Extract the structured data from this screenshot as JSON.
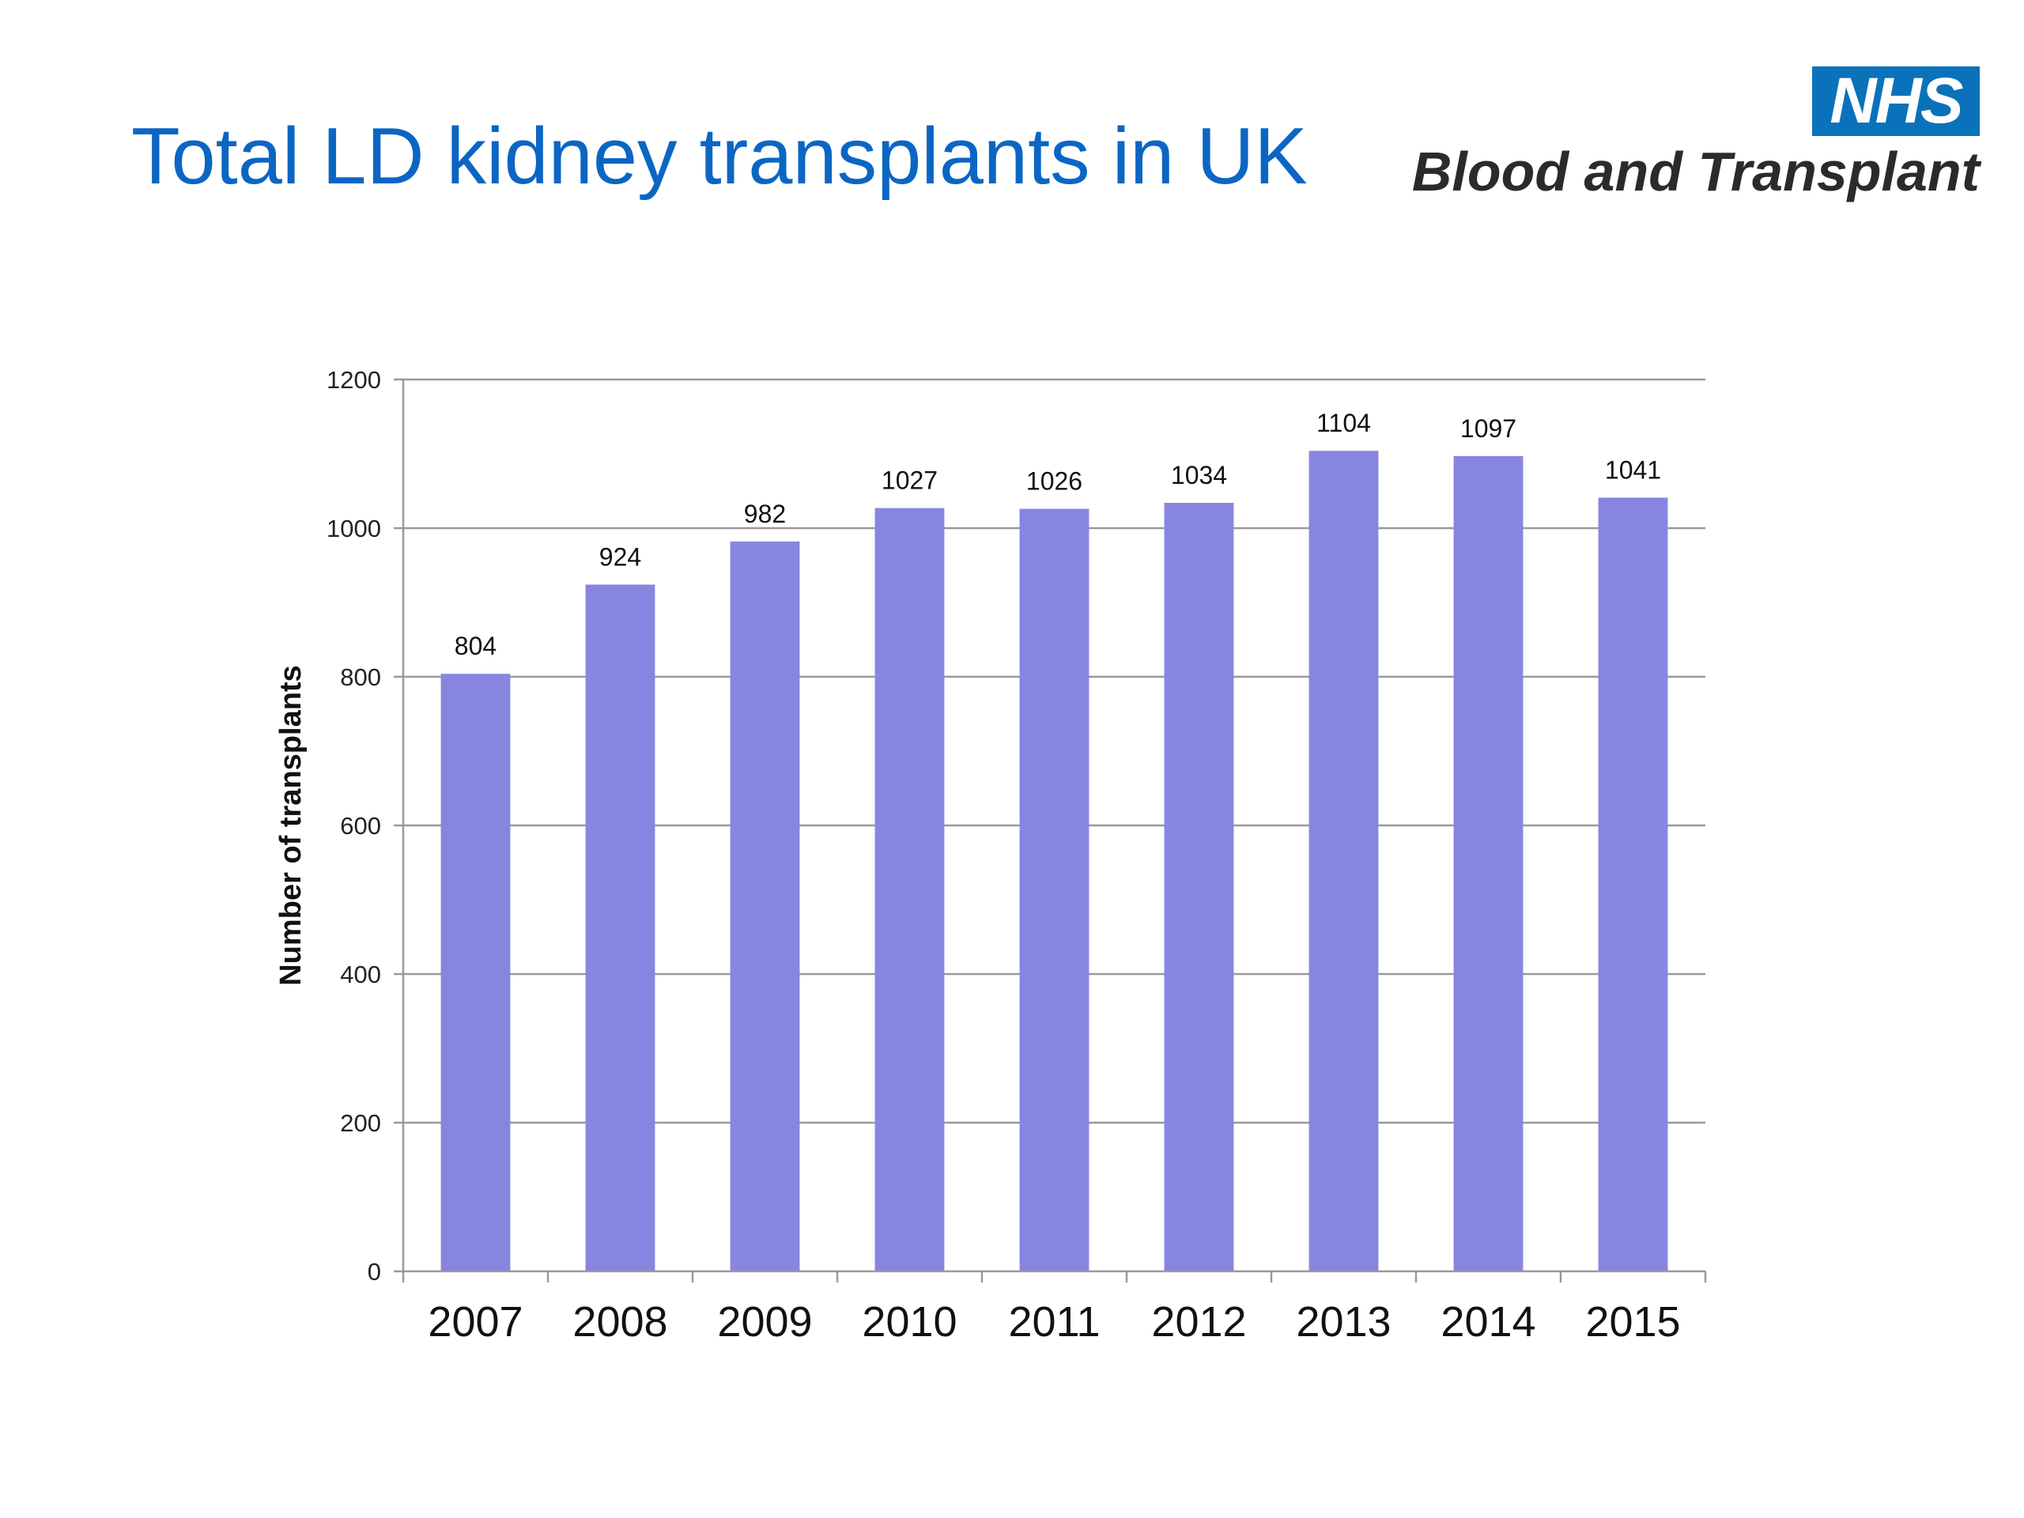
{
  "header": {
    "title": "Total LD kidney transplants in UK",
    "logo_badge": "NHS",
    "logo_text": "Blood and Transplant"
  },
  "colors": {
    "title": "#0b66c3",
    "bar": "#8686e0",
    "logo_badge": "#0a72ba",
    "grid": "#999999"
  },
  "chart_data": {
    "type": "bar",
    "title": "",
    "xlabel": "",
    "ylabel": "Number of transplants",
    "ylim": [
      0,
      1200
    ],
    "yticks": [
      0,
      200,
      400,
      600,
      800,
      1000,
      1200
    ],
    "grid": true,
    "categories": [
      "2007",
      "2008",
      "2009",
      "2010",
      "2011",
      "2012",
      "2013",
      "2014",
      "2015"
    ],
    "values": [
      804,
      924,
      982,
      1027,
      1026,
      1034,
      1104,
      1097,
      1041
    ]
  }
}
